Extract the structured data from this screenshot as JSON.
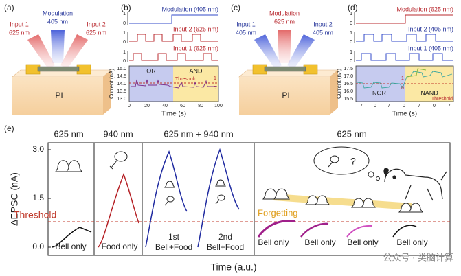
{
  "panels": {
    "a": {
      "label": "(a)",
      "input1": [
        "Input 1",
        "625 nm"
      ],
      "modulation": [
        "Modulation",
        "405 nm"
      ],
      "input2": [
        "Input 2",
        "625 nm"
      ],
      "substrate": "PI"
    },
    "b": {
      "label": "(b)",
      "traces": [
        "Modulation (405 nm)",
        "Input 2 (625 nm)",
        "Input 1 (625 nm)"
      ],
      "trace_levels": [
        "1",
        "0"
      ],
      "y_label": "Current (nA)",
      "y_ticks": [
        "15.0",
        "14.5",
        "14.0",
        "13.5",
        "13.0"
      ],
      "x_ticks": [
        "0",
        "20",
        "40",
        "60",
        "80",
        "100"
      ],
      "x_label": "Time (s)",
      "regions": [
        "OR",
        "AND"
      ],
      "threshold": "Threshold",
      "logic_levels": [
        "1",
        "0"
      ]
    },
    "c": {
      "label": "(c)",
      "input1": [
        "Input 1",
        "405 nm"
      ],
      "modulation": [
        "Modulation",
        "625 nm"
      ],
      "input2": [
        "Input 2",
        "405 nm"
      ],
      "substrate": "PI"
    },
    "d": {
      "label": "(d)",
      "traces": [
        "Modulation (625 nm)",
        "Input 2 (405 nm)",
        "Input 1 (405 nm)"
      ],
      "trace_levels": [
        "1",
        "0"
      ],
      "y_label": "Current (nA)",
      "y_ticks": [
        "17.5",
        "17.0",
        "16.5",
        "16.0",
        "15.5"
      ],
      "x_ticks": [
        "7",
        "0",
        "7",
        "0",
        "7",
        "0",
        "7"
      ],
      "x_label": "Time (s)",
      "regions": [
        "NOR",
        "NAND"
      ],
      "threshold": "Threshold",
      "logic_levels": [
        "1",
        "0"
      ]
    },
    "e": {
      "label": "(e)",
      "headings": [
        "625 nm",
        "940 nm",
        "625 nm + 940 nm",
        "625 nm"
      ],
      "y_label": "ΔEPSC (nA)",
      "y_ticks": [
        "0.0",
        "1.5",
        "3.0"
      ],
      "threshold": "Threshold",
      "forgetting": "Forgetting",
      "conditions": [
        "Bell only",
        "Food only",
        [
          "1st",
          "Bell+Food"
        ],
        [
          "2nd",
          "Bell+Food"
        ],
        "Bell only",
        "Bell only",
        "Bell only",
        "Bell only"
      ],
      "x_label": "Time (a.u.)",
      "watermark": "公众号 · 类脑计算"
    }
  }
}
